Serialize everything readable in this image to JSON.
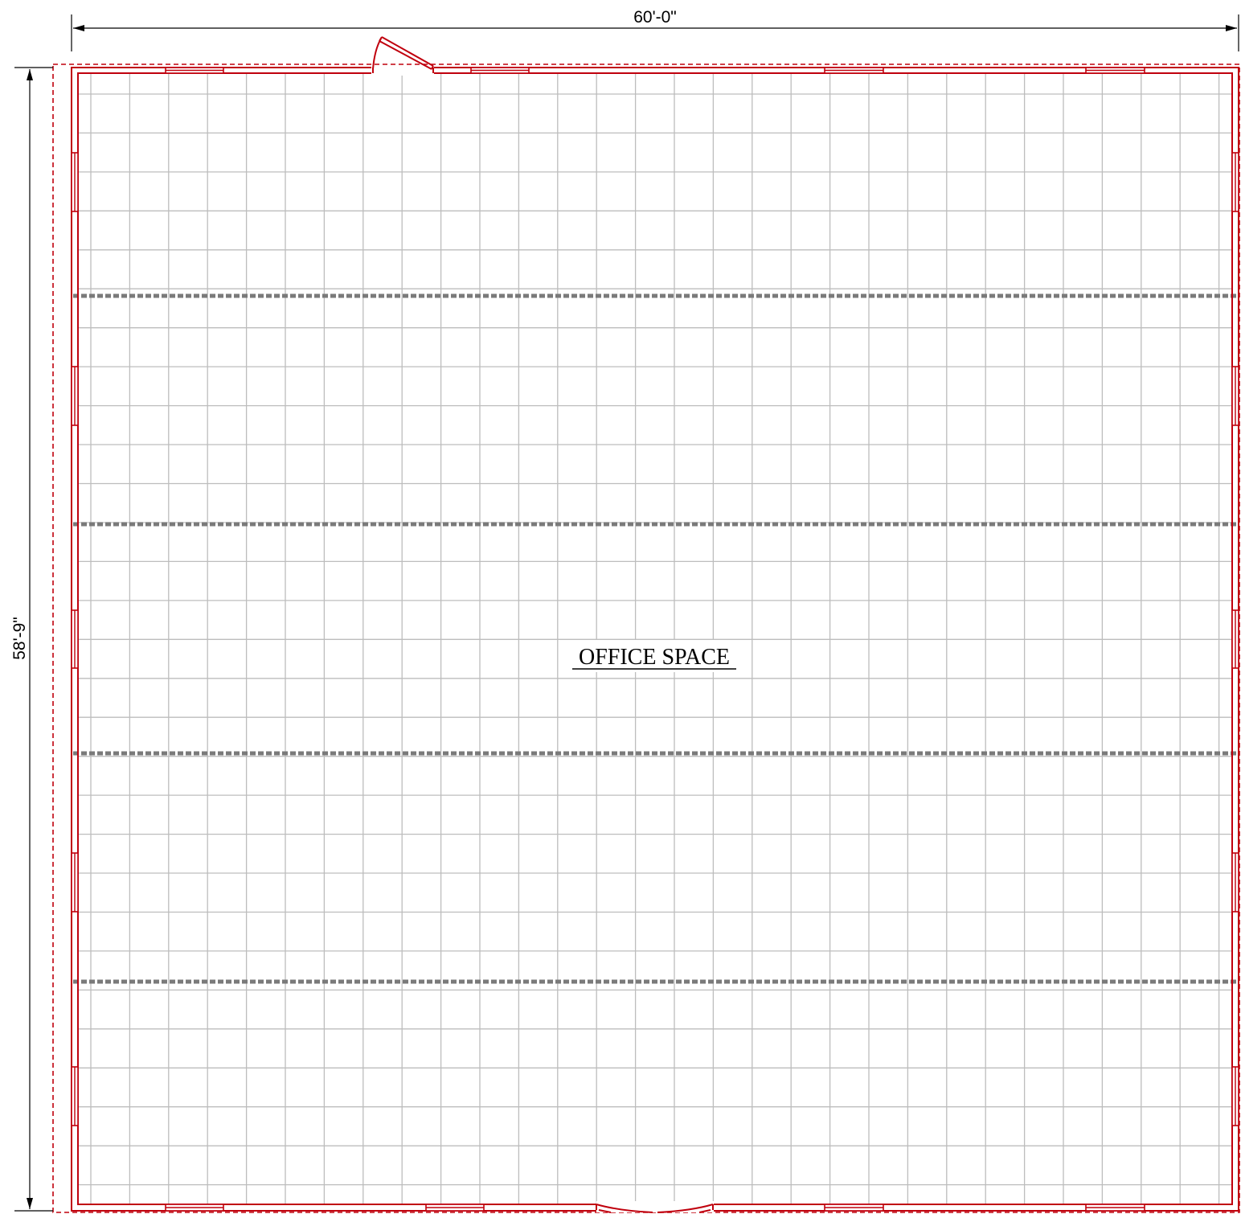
{
  "plan": {
    "width_dimension": "60'-0\"",
    "depth_dimension": "58'-9\"",
    "room_label": "OFFICE SPACE"
  },
  "colors": {
    "wall": "#c0000d",
    "grid": "#bdbdbd",
    "beam": "#7a7a7a",
    "dimension": "#000000"
  }
}
